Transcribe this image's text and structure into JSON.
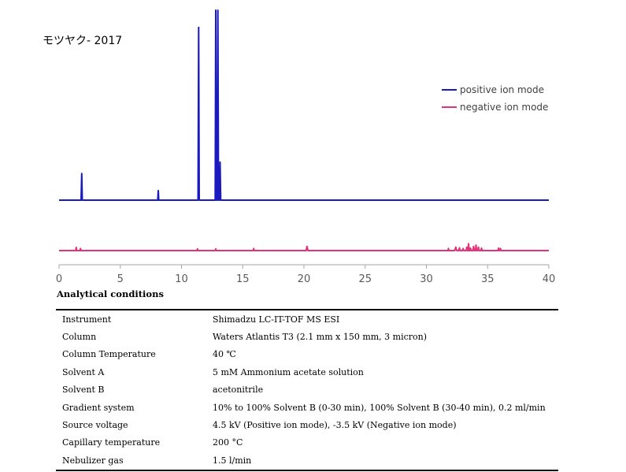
{
  "watermark": "モツヤク- 2017",
  "colors": {
    "positive": "#1a1abf",
    "negative": "#e0337a",
    "axis": "#a6a6a6"
  },
  "legend_position": "top-right",
  "chart_data": {
    "type": "line",
    "title": "",
    "xlabel": "",
    "ylabel": "",
    "xlim": [
      0,
      40
    ],
    "ticks": [
      0,
      5,
      10,
      15,
      20,
      25,
      30,
      35,
      40
    ],
    "grid": false,
    "series": [
      {
        "name": "positive ion mode",
        "color": "#1a1abf",
        "baseline": 0,
        "peaks": [
          {
            "x": 1.85,
            "y": 0.14,
            "w": 0.05
          },
          {
            "x": 8.1,
            "y": 0.05,
            "w": 0.04
          },
          {
            "x": 11.4,
            "y": 0.91,
            "w": 0.05
          },
          {
            "x": 12.8,
            "y": 1.0,
            "w": 0.05
          },
          {
            "x": 12.97,
            "y": 1.0,
            "w": 0.05
          },
          {
            "x": 13.15,
            "y": 0.2,
            "w": 0.05
          }
        ]
      },
      {
        "name": "negative ion mode",
        "color": "#e0337a",
        "baseline": 0,
        "peaks": [
          {
            "x": 1.4,
            "y": 0.045,
            "w": 0.04
          },
          {
            "x": 1.75,
            "y": 0.03,
            "w": 0.04
          },
          {
            "x": 11.3,
            "y": 0.025,
            "w": 0.04
          },
          {
            "x": 12.8,
            "y": 0.025,
            "w": 0.04
          },
          {
            "x": 15.9,
            "y": 0.03,
            "w": 0.04
          },
          {
            "x": 20.25,
            "y": 0.06,
            "w": 0.07
          },
          {
            "x": 31.8,
            "y": 0.03,
            "w": 0.04
          },
          {
            "x": 32.4,
            "y": 0.05,
            "w": 0.08
          },
          {
            "x": 32.7,
            "y": 0.04,
            "w": 0.06
          },
          {
            "x": 33.0,
            "y": 0.03,
            "w": 0.05
          },
          {
            "x": 33.3,
            "y": 0.05,
            "w": 0.05
          },
          {
            "x": 33.45,
            "y": 0.1,
            "w": 0.04
          },
          {
            "x": 33.6,
            "y": 0.035,
            "w": 0.05
          },
          {
            "x": 33.85,
            "y": 0.06,
            "w": 0.05
          },
          {
            "x": 34.05,
            "y": 0.08,
            "w": 0.05
          },
          {
            "x": 34.25,
            "y": 0.05,
            "w": 0.05
          },
          {
            "x": 34.5,
            "y": 0.035,
            "w": 0.05
          },
          {
            "x": 35.9,
            "y": 0.035,
            "w": 0.05
          },
          {
            "x": 36.05,
            "y": 0.03,
            "w": 0.05
          }
        ]
      }
    ]
  },
  "conditions": {
    "title": "Analytical conditions",
    "rows": [
      {
        "label": "Instrument",
        "value": "Shimadzu LC-IT-TOF MS ESI"
      },
      {
        "label": "Column",
        "value": "Waters Atlantis T3 (2.1 mm x 150 mm, 3 micron)"
      },
      {
        "label": "Column Temperature",
        "value": "40 ℃"
      },
      {
        "label": "Solvent A",
        "value": "5 mM Ammonium acetate solution"
      },
      {
        "label": "Solvent B",
        "value": "acetonitrile"
      },
      {
        "label": "Gradient system",
        "value": "10% to 100% Solvent B (0-30 min), 100% Solvent B (30-40 min), 0.2 ml/min"
      },
      {
        "label": "Source voltage",
        "value": "4.5 kV (Positive ion mode), -3.5 kV (Negative ion mode)"
      },
      {
        "label": "Capillary temperature",
        "value": "200 °C"
      },
      {
        "label": "Nebulizer gas",
        "value": "1.5 l/min"
      }
    ]
  }
}
